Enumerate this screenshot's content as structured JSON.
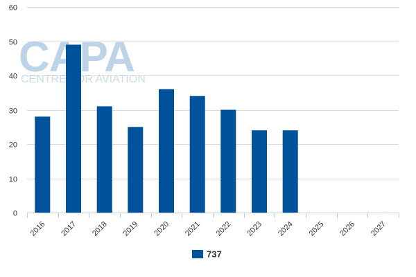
{
  "watermark": {
    "main": "CAPA",
    "sub": "CENTRE FOR AVIATION"
  },
  "colors": {
    "series": "#00529b",
    "grid": "#d9d9d9",
    "axis": "#c0d0e0",
    "watermark": "#bcd3e8"
  },
  "chart_data": {
    "type": "bar",
    "categories": [
      "2016",
      "2017",
      "2018",
      "2019",
      "2020",
      "2021",
      "2022",
      "2023",
      "2024",
      "2025",
      "2026",
      "2027"
    ],
    "series": [
      {
        "name": "737",
        "values": [
          28,
          49,
          31,
          25,
          36,
          34,
          30,
          24,
          24,
          null,
          null,
          null
        ],
        "color": "#00529b"
      }
    ],
    "title": "",
    "xlabel": "",
    "ylabel": "",
    "ylim": [
      0,
      60
    ],
    "yticks": [
      "0",
      "10",
      "20",
      "30",
      "40",
      "50",
      "60"
    ],
    "grid": true,
    "legend": "bottom-center"
  }
}
